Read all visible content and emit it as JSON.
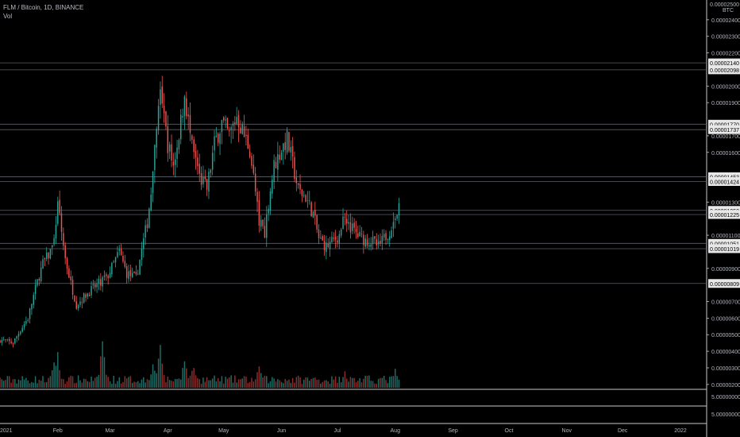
{
  "header": {
    "title": "FLM / Bitcoin, 1D, BINANCE",
    "volume_label": "Vol"
  },
  "colors": {
    "up": "#26a69a",
    "down": "#ef5350",
    "grid": "#2a2e39",
    "hline": "#5d6068",
    "axis_text": "#b2b5be",
    "price_box": "#e8e8e8"
  },
  "chart_data": {
    "type": "candlestick",
    "title": "FLM / Bitcoin, 1D, BINANCE",
    "currency": "BTC",
    "x_tick_labels": [
      "2021",
      "Feb",
      "Mar",
      "Apr",
      "May",
      "Jun",
      "Jul",
      "Aug",
      "Sep",
      "Oct",
      "Nov",
      "Dec",
      "2022"
    ],
    "y_tick_labels": [
      "0.00002400",
      "0.00002300",
      "0.00002200",
      "0.00002000",
      "0.00001900",
      "0.00001700",
      "0.00001600",
      "0.00001300",
      "0.00001100",
      "0.00000900",
      "0.00000700",
      "0.00000600",
      "0.00000500",
      "0.00000400",
      "0.00000300",
      "0.00000200"
    ],
    "ylim": [
      1.8e-06,
      2.5e-05
    ],
    "price_lines": [
      "0.00002140",
      "0.00002098",
      "0.00001770",
      "0.00001737",
      "0.00001453",
      "0.00001424",
      "0.00001250",
      "0.00001225",
      "0.00001051",
      "0.00001019",
      "0.00000809"
    ],
    "top_axis_labels": [
      "0.00002500",
      "BTC"
    ],
    "volume_pane": {
      "axis_labels": [
        "5.00000000",
        "5.00000000"
      ]
    },
    "anchors": [
      {
        "x": "2021-01-01",
        "close": 4.7e-06
      },
      {
        "x": "2021-01-08",
        "close": 4.5e-06
      },
      {
        "x": "2021-01-12",
        "close": 5.3e-06
      },
      {
        "x": "2021-01-16",
        "close": 6e-06
      },
      {
        "x": "2021-01-18",
        "close": 6.9e-06
      },
      {
        "x": "2021-01-21",
        "close": 8.2e-06
      },
      {
        "x": "2021-01-24",
        "close": 9.3e-06
      },
      {
        "x": "2021-01-27",
        "close": 9.8e-06
      },
      {
        "x": "2021-01-30",
        "close": 1.05e-05
      },
      {
        "x": "2021-02-01",
        "close": 1.32e-05
      },
      {
        "x": "2021-02-03",
        "close": 1.12e-05
      },
      {
        "x": "2021-02-05",
        "close": 9.6e-06
      },
      {
        "x": "2021-02-08",
        "close": 8.1e-06
      },
      {
        "x": "2021-02-11",
        "close": 6.8e-06
      },
      {
        "x": "2021-02-16",
        "close": 7.4e-06
      },
      {
        "x": "2021-02-22",
        "close": 8e-06
      },
      {
        "x": "2021-02-28",
        "close": 8.6e-06
      },
      {
        "x": "2021-03-06",
        "close": 1e-05
      },
      {
        "x": "2021-03-10",
        "close": 8.7e-06
      },
      {
        "x": "2021-03-15",
        "close": 8.4e-06
      },
      {
        "x": "2021-03-21",
        "close": 1.18e-05
      },
      {
        "x": "2021-03-24",
        "close": 1.45e-05
      },
      {
        "x": "2021-03-26",
        "close": 1.75e-05
      },
      {
        "x": "2021-03-28",
        "close": 1.93e-05
      },
      {
        "x": "2021-04-01",
        "close": 1.65e-05
      },
      {
        "x": "2021-04-04",
        "close": 1.52e-05
      },
      {
        "x": "2021-04-08",
        "close": 1.78e-05
      },
      {
        "x": "2021-04-10",
        "close": 1.95e-05
      },
      {
        "x": "2021-04-14",
        "close": 1.62e-05
      },
      {
        "x": "2021-04-18",
        "close": 1.45e-05
      },
      {
        "x": "2021-04-22",
        "close": 1.38e-05
      },
      {
        "x": "2021-04-26",
        "close": 1.65e-05
      },
      {
        "x": "2021-04-30",
        "close": 1.78e-05
      },
      {
        "x": "2021-05-04",
        "close": 1.7e-05
      },
      {
        "x": "2021-05-08",
        "close": 1.82e-05
      },
      {
        "x": "2021-05-12",
        "close": 1.7e-05
      },
      {
        "x": "2021-05-15",
        "close": 1.62e-05
      },
      {
        "x": "2021-05-17",
        "close": 1.45e-05
      },
      {
        "x": "2021-05-20",
        "close": 1.18e-05
      },
      {
        "x": "2021-05-23",
        "close": 1.12e-05
      },
      {
        "x": "2021-05-25",
        "close": 1.3e-05
      },
      {
        "x": "2021-05-28",
        "close": 1.52e-05
      },
      {
        "x": "2021-06-01",
        "close": 1.62e-05
      },
      {
        "x": "2021-06-04",
        "close": 1.68e-05
      },
      {
        "x": "2021-06-07",
        "close": 1.53e-05
      },
      {
        "x": "2021-06-10",
        "close": 1.37e-05
      },
      {
        "x": "2021-06-14",
        "close": 1.33e-05
      },
      {
        "x": "2021-06-18",
        "close": 1.23e-05
      },
      {
        "x": "2021-06-21",
        "close": 1.08e-05
      },
      {
        "x": "2021-06-25",
        "close": 1.03e-05
      },
      {
        "x": "2021-06-28",
        "close": 1.06e-05
      },
      {
        "x": "2021-07-02",
        "close": 1.1e-05
      },
      {
        "x": "2021-07-05",
        "close": 1.24e-05
      },
      {
        "x": "2021-07-08",
        "close": 1.15e-05
      },
      {
        "x": "2021-07-12",
        "close": 1.1e-05
      },
      {
        "x": "2021-07-16",
        "close": 1.07e-05
      },
      {
        "x": "2021-07-20",
        "close": 1.06e-05
      },
      {
        "x": "2021-07-23",
        "close": 1.03e-05
      },
      {
        "x": "2021-07-26",
        "close": 1.08e-05
      },
      {
        "x": "2021-07-29",
        "close": 1.13e-05
      },
      {
        "x": "2021-08-01",
        "close": 1.2e-05
      },
      {
        "x": "2021-08-03",
        "close": 1.26e-05
      }
    ],
    "volume_peaks": [
      {
        "x": "2021-01-30",
        "volume": 0.55
      },
      {
        "x": "2021-02-01",
        "volume": 0.75
      },
      {
        "x": "2021-02-25",
        "volume": 1.0
      },
      {
        "x": "2021-03-24",
        "volume": 0.6
      },
      {
        "x": "2021-03-28",
        "volume": 0.95
      },
      {
        "x": "2021-04-10",
        "volume": 0.7
      },
      {
        "x": "2021-04-15",
        "volume": 0.55
      },
      {
        "x": "2021-05-20",
        "volume": 0.5
      },
      {
        "x": "2021-07-05",
        "volume": 0.35
      },
      {
        "x": "2021-08-01",
        "volume": 0.4
      }
    ]
  }
}
